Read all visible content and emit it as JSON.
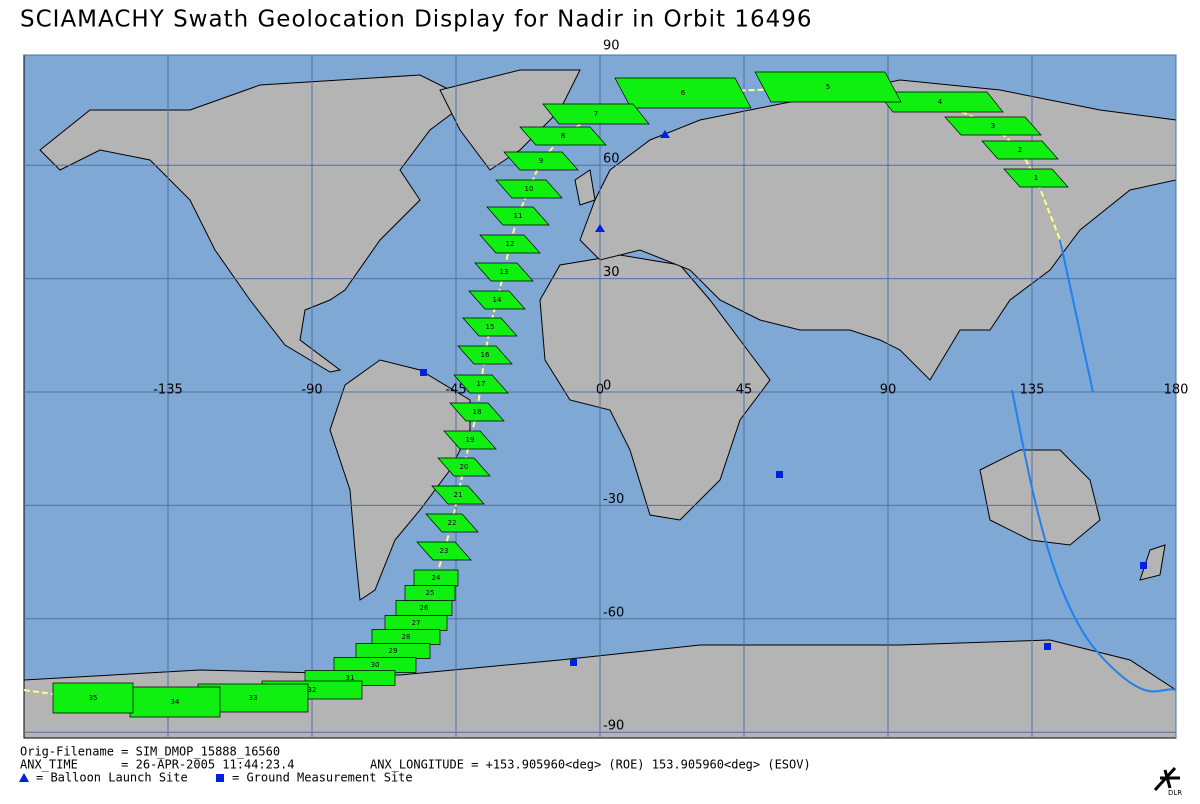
{
  "header": {
    "title": "SCIAMACHY Swath Geolocation Display for Nadir in Orbit 16496"
  },
  "map": {
    "lat_ticks": [
      90,
      60,
      30,
      0,
      -30,
      -60,
      -90
    ],
    "lon_ticks": [
      -135,
      -90,
      -45,
      0,
      45,
      90,
      135,
      180
    ],
    "swath_labels": [
      "1",
      "2",
      "3",
      "4",
      "5",
      "6",
      "7",
      "8",
      "9",
      "10",
      "11",
      "12",
      "13",
      "14",
      "15",
      "16",
      "17",
      "18",
      "19",
      "20",
      "21",
      "22",
      "23",
      "24",
      "25",
      "26",
      "27",
      "28",
      "29",
      "30",
      "31",
      "32",
      "33",
      "34",
      "35"
    ]
  },
  "footer": {
    "lines": [
      "Orig-Filename = SIM_DMOP_15888_16560",
      "ANX_TIME      = 26-APR-2005 11:44:23.4",
      "ANX_LONGITUDE = +153.905960<deg> (ROE) 153.905960<deg> (ESOV)"
    ],
    "legend": [
      "= Balloon Launch Site",
      "= Ground Measurement Site"
    ],
    "logo": "DLR"
  }
}
